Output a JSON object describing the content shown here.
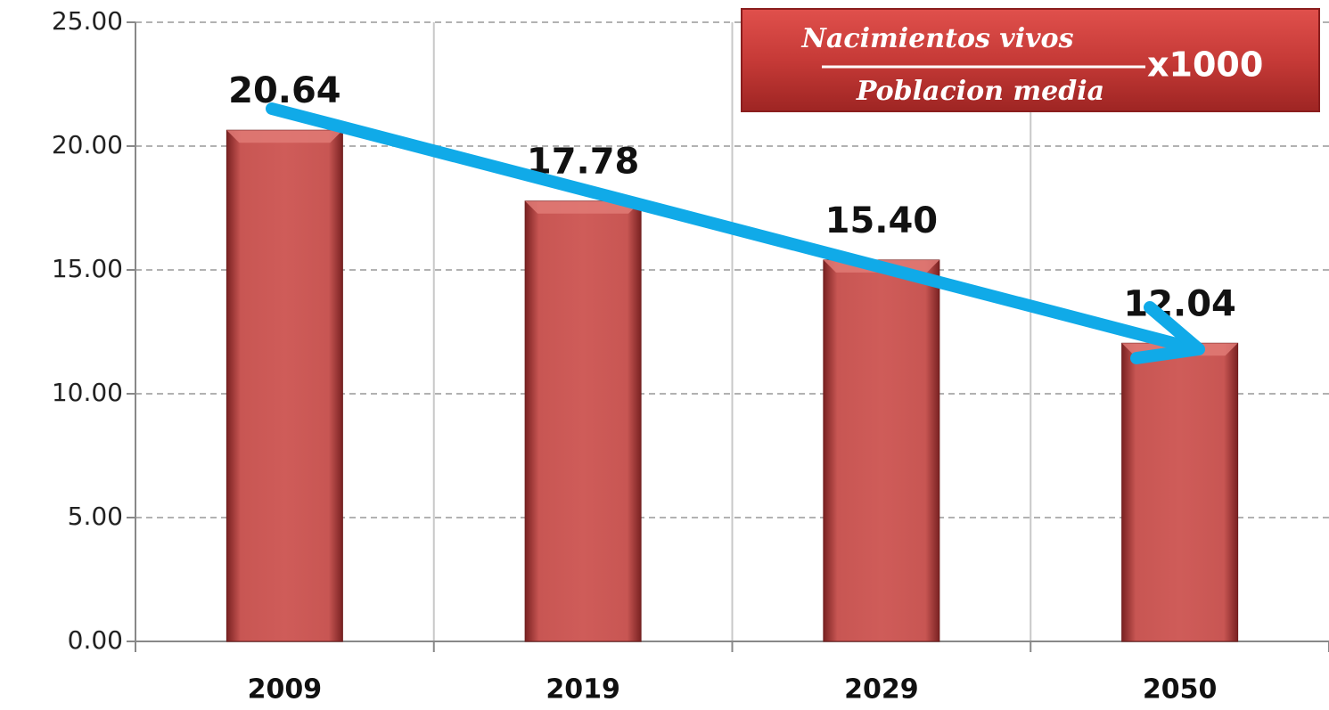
{
  "chart_data": {
    "type": "bar",
    "categories": [
      "2009",
      "2019",
      "2029",
      "2050"
    ],
    "values": [
      20.64,
      17.78,
      15.4,
      12.04
    ],
    "value_labels": [
      "20.64",
      "17.78",
      "15.40",
      "12.04"
    ],
    "color": "#cd5c5a",
    "ylim": [
      0,
      25
    ],
    "yticks": [
      {
        "value": 0,
        "label": "0.00"
      },
      {
        "value": 5,
        "label": "5.00"
      },
      {
        "value": 10,
        "label": "10.00"
      },
      {
        "value": 15,
        "label": "15.00"
      },
      {
        "value": 20,
        "label": "20.00"
      },
      {
        "value": 25,
        "label": "25.00"
      }
    ],
    "grid": true,
    "annotation": {
      "numerator": "Nacimientos vivos",
      "denominator": "Poblacion media",
      "multiplier": "x1000"
    }
  }
}
